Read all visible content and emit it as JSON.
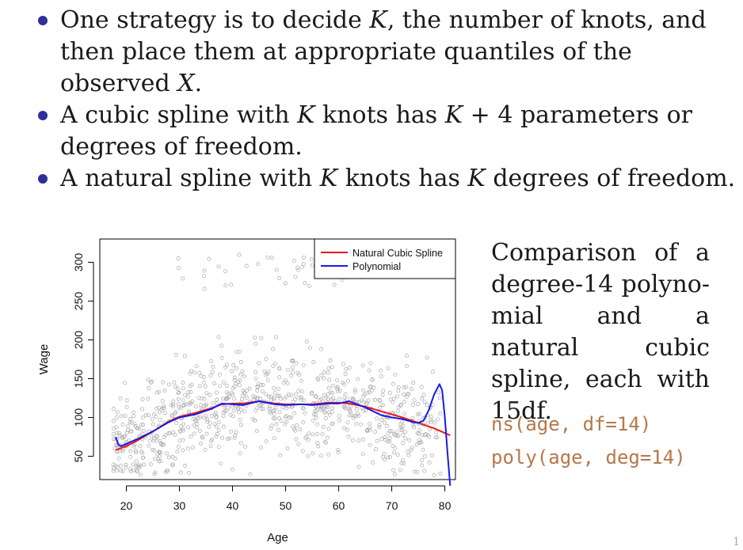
{
  "bullets": [
    {
      "parts": [
        {
          "t": "One strategy is to decide "
        },
        {
          "t": "K",
          "m": true
        },
        {
          "t": ", the number of knots, and then place them at appropriate quantiles of the observed "
        },
        {
          "t": "X",
          "m": true
        },
        {
          "t": "."
        }
      ]
    },
    {
      "parts": [
        {
          "t": "A cubic spline with "
        },
        {
          "t": "K",
          "m": true
        },
        {
          "t": " knots has "
        },
        {
          "t": "K",
          "m": true
        },
        {
          "t": " + 4 parameters or degrees of freedom."
        }
      ]
    },
    {
      "parts": [
        {
          "t": "A natural spline with "
        },
        {
          "t": "K",
          "m": true
        },
        {
          "t": " knots has "
        },
        {
          "t": "K",
          "m": true
        },
        {
          "t": " degrees of freedom."
        }
      ]
    }
  ],
  "caption": "Comparison of a degree-14 polyno- mial and a natural cubic spline, each with 15df.",
  "code": {
    "line1": "ns(age, df=14)",
    "line2": "poly(age, deg=14)"
  },
  "page_number": "1",
  "chart_data": {
    "type": "scatter",
    "title": "",
    "xlabel": "Age",
    "ylabel": "Wage",
    "xlim": [
      15,
      82
    ],
    "ylim": [
      20,
      330
    ],
    "xticks": [
      20,
      30,
      40,
      50,
      60,
      70,
      80
    ],
    "yticks": [
      50,
      100,
      150,
      200,
      250,
      300
    ],
    "grid": false,
    "legend_position": "top-right",
    "points_color": "#a8a8a8",
    "series": [
      {
        "name": "Natural Cubic Spline",
        "color": "#e41a1c",
        "x": [
          18,
          20,
          22,
          25,
          28,
          30,
          33,
          36,
          38,
          40,
          42,
          45,
          48,
          50,
          53,
          55,
          58,
          60,
          62,
          65,
          68,
          70,
          72,
          75,
          78,
          80,
          81
        ],
        "y": [
          58,
          63,
          70,
          82,
          95,
          101,
          106,
          112,
          117,
          118,
          118,
          121,
          118,
          117,
          117,
          117,
          119,
          119,
          118,
          114,
          108,
          104,
          100,
          93,
          86,
          80,
          77
        ]
      },
      {
        "name": "Polynomial",
        "color": "#1a1ae6",
        "x": [
          18,
          18.5,
          19,
          20,
          22,
          25,
          28,
          30,
          33,
          36,
          38,
          40,
          42,
          45,
          48,
          50,
          53,
          55,
          58,
          60,
          62,
          65,
          68,
          70,
          72,
          74,
          75,
          76,
          77,
          78,
          79,
          79.5,
          80,
          80.5,
          81
        ],
        "y": [
          75,
          65,
          63,
          66,
          72,
          82,
          94,
          100,
          104,
          111,
          118,
          117,
          116,
          121,
          117,
          116,
          117,
          116,
          118,
          118,
          121,
          113,
          103,
          100,
          98,
          94,
          93,
          96,
          110,
          130,
          143,
          135,
          100,
          55,
          12
        ]
      }
    ]
  }
}
